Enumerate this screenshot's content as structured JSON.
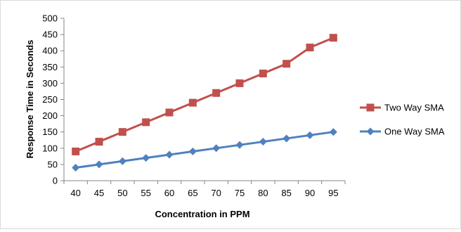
{
  "chart_data": {
    "type": "line",
    "title": "",
    "xlabel": "Concentration in PPM",
    "ylabel": "Response Time in Seconds",
    "x": [
      40,
      45,
      50,
      55,
      60,
      65,
      70,
      75,
      80,
      85,
      90,
      95
    ],
    "ylim": [
      0,
      500
    ],
    "yticks": [
      0,
      50,
      100,
      150,
      200,
      250,
      300,
      350,
      400,
      450,
      500
    ],
    "grid": false,
    "legend_position": "right",
    "series": [
      {
        "name": "Two Way SMA",
        "color": "#c0504d",
        "marker": "square",
        "values": [
          90,
          120,
          150,
          180,
          210,
          240,
          270,
          300,
          330,
          360,
          410,
          440
        ]
      },
      {
        "name": "One Way SMA",
        "color": "#4f81bd",
        "marker": "diamond",
        "values": [
          40,
          50,
          60,
          70,
          80,
          90,
          100,
          110,
          120,
          130,
          140,
          150
        ]
      }
    ]
  }
}
